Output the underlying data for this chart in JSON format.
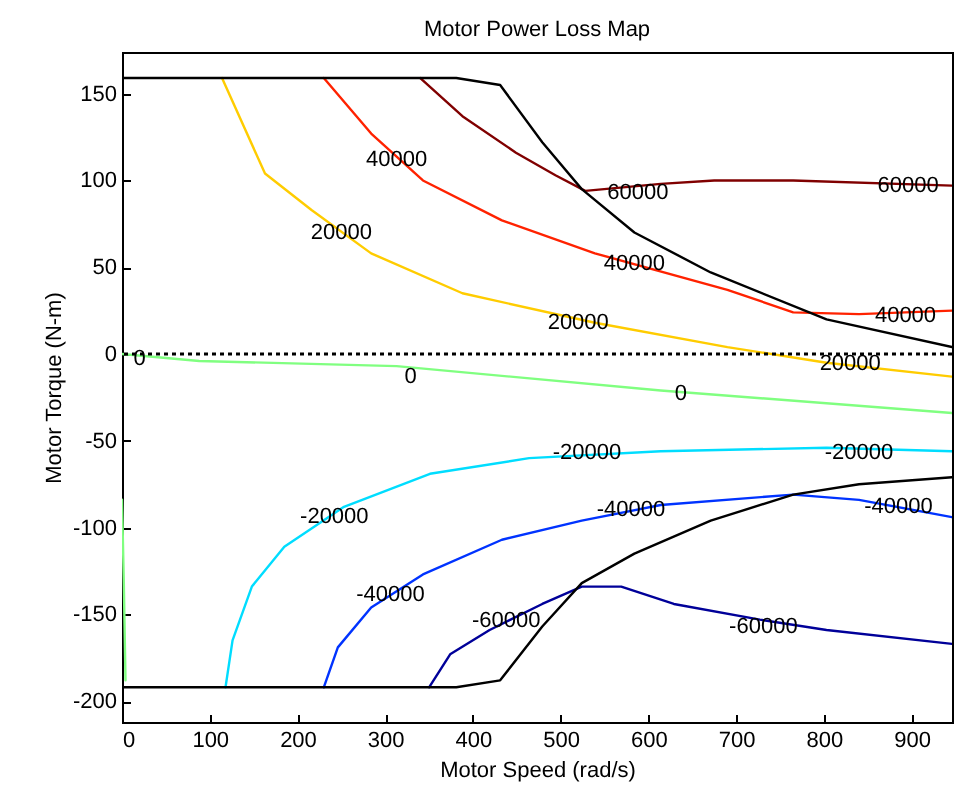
{
  "chart_data": {
    "type": "line",
    "title": "Motor Power Loss Map",
    "xlabel": "Motor Speed (rad/s)",
    "ylabel": "Motor Torque (N-m)",
    "xlim": [
      0,
      946
    ],
    "ylim": [
      -212,
      174
    ],
    "xticks": [
      0,
      100,
      200,
      300,
      400,
      500,
      600,
      700,
      800,
      900
    ],
    "yticks": [
      -200,
      -150,
      -100,
      -50,
      0,
      50,
      100,
      150
    ],
    "grid": false,
    "marker": "none",
    "line_style": "solid",
    "series": [
      {
        "color": "#800000",
        "x": [
          340,
          388,
          449,
          494,
          528,
          614,
          675,
          765,
          946
        ],
        "values": [
          159,
          137,
          116,
          103,
          94,
          98,
          100,
          100,
          97
        ]
      },
      {
        "color": "#ff2200",
        "x": [
          230,
          284,
          343,
          433,
          539,
          690,
          765,
          840,
          946
        ],
        "values": [
          159,
          127,
          100,
          77,
          58,
          37,
          24,
          23,
          25
        ]
      },
      {
        "color": "#ffcc00",
        "x": [
          114,
          163,
          216,
          284,
          388,
          539,
          690,
          803,
          946
        ],
        "values": [
          159,
          104,
          83,
          58,
          35,
          18,
          4,
          -5,
          -13
        ]
      },
      {
        "color": "#80ff80",
        "x": [
          0,
          88,
          313,
          614,
          946
        ],
        "values": [
          0,
          -4,
          -7,
          -21,
          -34
        ]
      },
      {
        "color": "#80ff80",
        "x": [
          0,
          2,
          4
        ],
        "values": [
          -84,
          -130,
          -188
        ]
      },
      {
        "color": "#00ddff",
        "x": [
          118,
          126,
          148,
          185,
          253,
          351,
          464,
          614,
          803,
          946
        ],
        "values": [
          -192,
          -165,
          -134,
          -111,
          -88,
          -69,
          -60,
          -56,
          -54,
          -56
        ]
      },
      {
        "color": "#0033ff",
        "x": [
          230,
          246,
          284,
          343,
          433,
          524,
          614,
          765,
          840,
          946
        ],
        "values": [
          -192,
          -169,
          -146,
          -127,
          -107,
          -96,
          -87,
          -81,
          -84,
          -94
        ]
      },
      {
        "color": "#000099",
        "x": [
          350,
          374,
          419,
          479,
          524,
          569,
          629,
          727,
          803,
          946
        ],
        "values": [
          -192,
          -173,
          -159,
          -144,
          -134,
          -134,
          -144,
          -153,
          -159,
          -167
        ]
      },
      {
        "color": "#000000",
        "x": [
          0,
          381,
          431,
          479,
          524,
          584,
          671,
          803,
          946
        ],
        "values": [
          159,
          159,
          155,
          122,
          95,
          70,
          47,
          20,
          4
        ]
      },
      {
        "color": "#000000",
        "x": [
          0,
          381,
          431,
          479,
          524,
          584,
          671,
          765,
          840,
          946
        ],
        "values": [
          -192,
          -192,
          -188,
          -157,
          -132,
          -115,
          -96,
          -81,
          -75,
          -71
        ]
      }
    ],
    "ref_lines": [
      {
        "axis": "y",
        "value": 0,
        "color": "#000000",
        "line_style": "dotted"
      }
    ],
    "annotations": [
      {
        "text": "60000",
        "x": 588,
        "y": 93
      },
      {
        "text": "60000",
        "x": 896,
        "y": 97
      },
      {
        "text": "40000",
        "x": 313,
        "y": 112
      },
      {
        "text": "40000",
        "x": 584,
        "y": 52
      },
      {
        "text": "40000",
        "x": 893,
        "y": 22
      },
      {
        "text": "20000",
        "x": 250,
        "y": 70
      },
      {
        "text": "20000",
        "x": 520,
        "y": 18
      },
      {
        "text": "20000",
        "x": 830,
        "y": -6
      },
      {
        "text": "0",
        "x": 20,
        "y": -3
      },
      {
        "text": "0",
        "x": 329,
        "y": -13
      },
      {
        "text": "0",
        "x": 637,
        "y": -23
      },
      {
        "text": "-20000",
        "x": 242,
        "y": -94
      },
      {
        "text": "-20000",
        "x": 530,
        "y": -57
      },
      {
        "text": "-20000",
        "x": 840,
        "y": -57
      },
      {
        "text": "-40000",
        "x": 306,
        "y": -139
      },
      {
        "text": "-40000",
        "x": 580,
        "y": -90
      },
      {
        "text": "-40000",
        "x": 885,
        "y": -88
      },
      {
        "text": "-60000",
        "x": 438,
        "y": -154
      },
      {
        "text": "-60000",
        "x": 731,
        "y": -157
      }
    ]
  }
}
